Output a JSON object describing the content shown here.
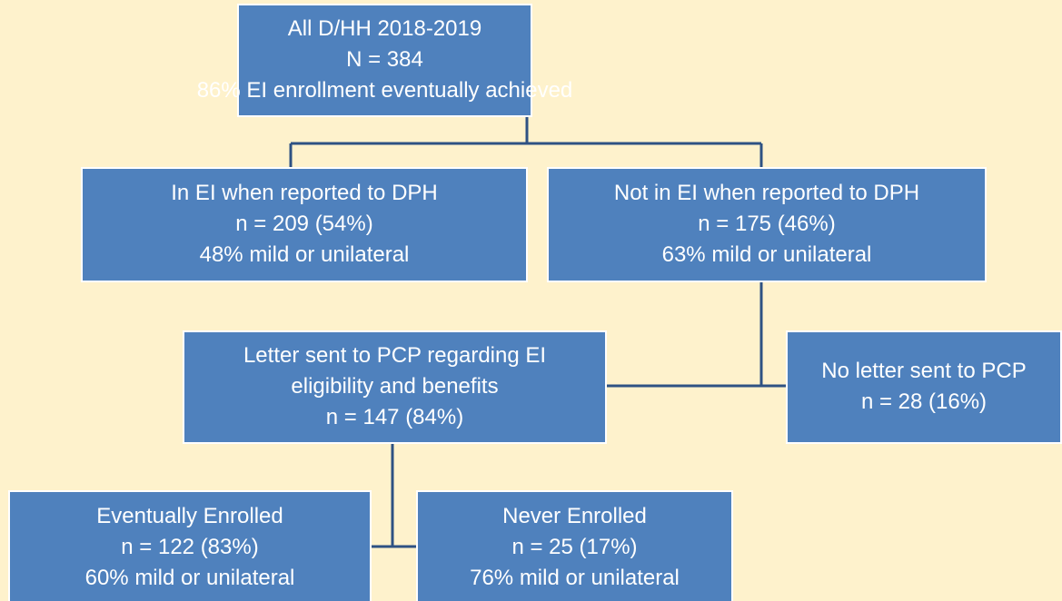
{
  "nodes": [
    {
      "lines": [
        "All D/HH 2018-2019",
        "N = 384",
        "86% EI enrollment eventually achieved"
      ]
    },
    {
      "lines": [
        "In EI when reported to DPH",
        "n = 209 (54%)",
        "48% mild or unilateral"
      ]
    },
    {
      "lines": [
        "Not in EI when reported to DPH",
        "n = 175 (46%)",
        "63% mild or unilateral"
      ]
    },
    {
      "lines": [
        "Letter sent to PCP regarding EI",
        "eligibility and benefits",
        "n = 147 (84%)"
      ]
    },
    {
      "lines": [
        "No letter sent to PCP",
        "n = 28 (16%)"
      ]
    },
    {
      "lines": [
        "Eventually Enrolled",
        "n = 122 (83%)",
        "60% mild or unilateral"
      ]
    },
    {
      "lines": [
        "Never Enrolled",
        "n = 25 (17%)",
        "76%  mild or unilateral"
      ]
    }
  ]
}
